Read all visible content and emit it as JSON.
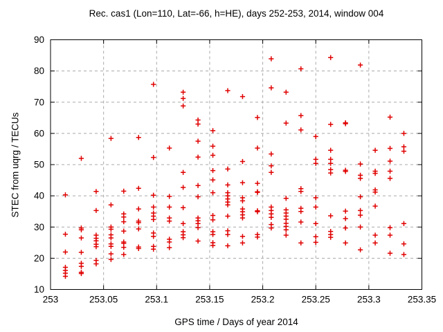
{
  "chart_data": {
    "type": "scatter",
    "title": "Rec. cas1 (Lon=110, Lat=-66, h=HE), days 252-253, 2014, window 004",
    "xlabel": "GPS time / Days of year 2014",
    "ylabel": "STEC from uqrg / TECUs",
    "xlim": [
      253,
      253.35
    ],
    "ylim": [
      10,
      90
    ],
    "xticks": [
      253,
      253.05,
      253.1,
      253.15,
      253.2,
      253.25,
      253.3,
      253.35
    ],
    "xtick_labels": [
      "253",
      "253.05",
      "253.1",
      "253.15",
      "253.2",
      "253.25",
      "253.3",
      "253.35"
    ],
    "yticks": [
      10,
      20,
      30,
      40,
      50,
      60,
      70,
      80,
      90
    ],
    "ytick_labels": [
      "10",
      "20",
      "30",
      "40",
      "50",
      "60",
      "70",
      "80",
      "90"
    ],
    "grid": true,
    "legend_position": "none",
    "marker": "plus",
    "marker_color": "#e00000",
    "grid_color": "#a8a8a8",
    "axis_color": "#000000",
    "series": [
      {
        "name": "STEC",
        "columns": [
          {
            "t": 253.014,
            "v": [
              40.3,
              27.7,
              22.0,
              17.1,
              16.1,
              15.2,
              14.2
            ]
          },
          {
            "t": 253.029,
            "v": [
              52.0,
              29.7,
              29.1,
              26.5,
              21.9,
              18.4,
              17.4,
              15.5,
              15.1
            ]
          },
          {
            "t": 253.043,
            "v": [
              41.4,
              35.3,
              27.4,
              26.4,
              25.6,
              24.5,
              23.7,
              19.3,
              18.2
            ]
          },
          {
            "t": 253.057,
            "v": [
              58.4,
              37.1,
              30.0,
              29.3,
              27.5,
              26.5,
              24.6,
              23.8,
              21.4,
              19.6
            ]
          },
          {
            "t": 253.069,
            "v": [
              41.5,
              34.2,
              33.2,
              31.7,
              28.7,
              25.2,
              24.8,
              23.5,
              21.2
            ]
          },
          {
            "t": 253.083,
            "v": [
              58.7,
              42.4,
              35.8,
              31.9,
              31.4,
              29.4,
              23.6,
              23.1
            ]
          },
          {
            "t": 253.097,
            "v": [
              75.7,
              52.3,
              40.2,
              36.4,
              34.5,
              33.5,
              32.4,
              28.1,
              27.0,
              23.8,
              22.9
            ]
          },
          {
            "t": 253.112,
            "v": [
              55.3,
              39.8,
              36.4,
              32.9,
              31.9,
              26.1,
              25.2,
              23.4
            ]
          },
          {
            "t": 253.125,
            "v": [
              73.2,
              71.2,
              68.8,
              47.5,
              42.7,
              36.2,
              31.1,
              28.5,
              27.5,
              26.6
            ]
          },
          {
            "t": 253.139,
            "v": [
              64.3,
              63.0,
              57.5,
              52.4,
              43.3,
              39.7,
              32.9,
              32.0,
              31.1,
              29.8,
              25.5
            ]
          },
          {
            "t": 253.153,
            "v": [
              60.9,
              55.9,
              53.0,
              48.1,
              45.1,
              41.0,
              33.7,
              32.3,
              28.5,
              27.6,
              25.0,
              24.1
            ]
          },
          {
            "t": 253.167,
            "v": [
              73.7,
              48.6,
              43.5,
              41.0,
              40.0,
              39.0,
              38.0,
              37.1,
              33.5,
              28.8,
              27.6,
              24.0
            ]
          },
          {
            "t": 253.181,
            "v": [
              71.8,
              51.0,
              44.2,
              39.4,
              38.4,
              35.8,
              34.9,
              33.9,
              32.9,
              27.0,
              24.9
            ]
          },
          {
            "t": 253.195,
            "v": [
              65.1,
              55.3,
              44.0,
              41.3,
              41.1,
              35.2,
              34.9,
              27.6,
              26.8
            ]
          },
          {
            "t": 253.208,
            "v": [
              83.9,
              74.6,
              53.4,
              49.6,
              47.5,
              36.4,
              35.3,
              34.2,
              33.1,
              30.8,
              29.7
            ]
          },
          {
            "t": 253.222,
            "v": [
              73.2,
              63.3,
              39.2,
              35.5,
              34.5,
              33.5,
              32.5,
              31.2,
              30.2,
              29.1,
              27.4
            ]
          },
          {
            "t": 253.236,
            "v": [
              80.7,
              65.7,
              61.1,
              42.3,
              41.4,
              36.0,
              35.0,
              31.6,
              24.9
            ]
          },
          {
            "t": 253.25,
            "v": [
              59.0,
              51.7,
              50.4,
              39.4,
              36.4,
              31.1,
              26.9,
              25.1
            ]
          },
          {
            "t": 253.264,
            "v": [
              84.3,
              62.9,
              54.6,
              51.7,
              50.4,
              48.4,
              47.3,
              33.6,
              28.6,
              27.6,
              26.7
            ]
          },
          {
            "t": 253.278,
            "v": [
              63.4,
              63.1,
              48.2,
              47.8,
              35.1,
              32.7,
              29.7,
              24.9
            ]
          },
          {
            "t": 253.292,
            "v": [
              81.9,
              50.2,
              46.6,
              45.6,
              39.7,
              35.3,
              33.8,
              30.0,
              22.7
            ]
          },
          {
            "t": 253.306,
            "v": [
              54.6,
              47.9,
              47.2,
              41.9,
              41.2,
              36.7,
              27.4,
              24.9
            ]
          },
          {
            "t": 253.32,
            "v": [
              65.2,
              55.2,
              51.1,
              47.9,
              45.6,
              29.8,
              27.4,
              21.6
            ]
          },
          {
            "t": 253.333,
            "v": [
              60.0,
              55.7,
              54.3,
              31.1,
              24.6,
              21.2
            ]
          }
        ]
      }
    ]
  }
}
